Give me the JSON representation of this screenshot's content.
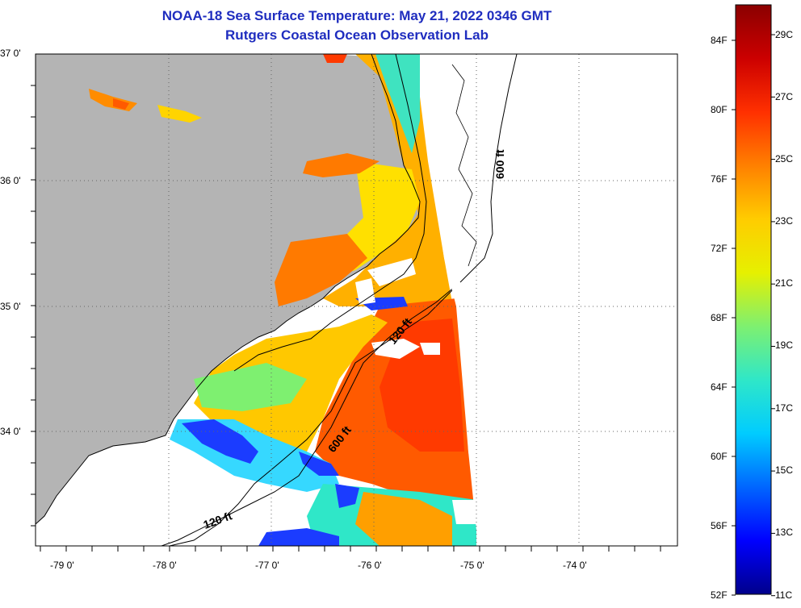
{
  "header": {
    "title": "NOAA-18 Sea Surface Temperature:  May 21, 2022 0346 GMT",
    "subtitle": "Rutgers Coastal Ocean Observation Lab"
  },
  "map": {
    "lat_labels": [
      "37 0'",
      "36 0'",
      "35 0'",
      "34 0'"
    ],
    "lon_labels": [
      "-79 0'",
      "-78 0'",
      "-77 0'",
      "-76 0'",
      "-75 0'",
      "-74 0'"
    ],
    "isobaths": [
      "600 ft",
      "120 ft",
      "600 ft",
      "120 ft"
    ],
    "colors": {
      "land": "#b4b4b4",
      "no_data": "#ffffff",
      "warm": "#ff5a00",
      "mid": "#ffd400",
      "cool": "#30e6c0",
      "cold": "#1b3cff"
    }
  },
  "colorbar": {
    "fahrenheit": [
      "84F",
      "80F",
      "76F",
      "72F",
      "68F",
      "64F",
      "60F",
      "56F",
      "52F"
    ],
    "celsius": [
      "29C",
      "27C",
      "25C",
      "23C",
      "21C",
      "19C",
      "17C",
      "15C",
      "13C",
      "11C"
    ],
    "colors": [
      "#00008b",
      "#0000ff",
      "#0066ff",
      "#00ccff",
      "#2fe7c8",
      "#7ef070",
      "#e6f000",
      "#ffcc00",
      "#ff8000",
      "#ff3000",
      "#cc0000",
      "#8b0000"
    ]
  }
}
